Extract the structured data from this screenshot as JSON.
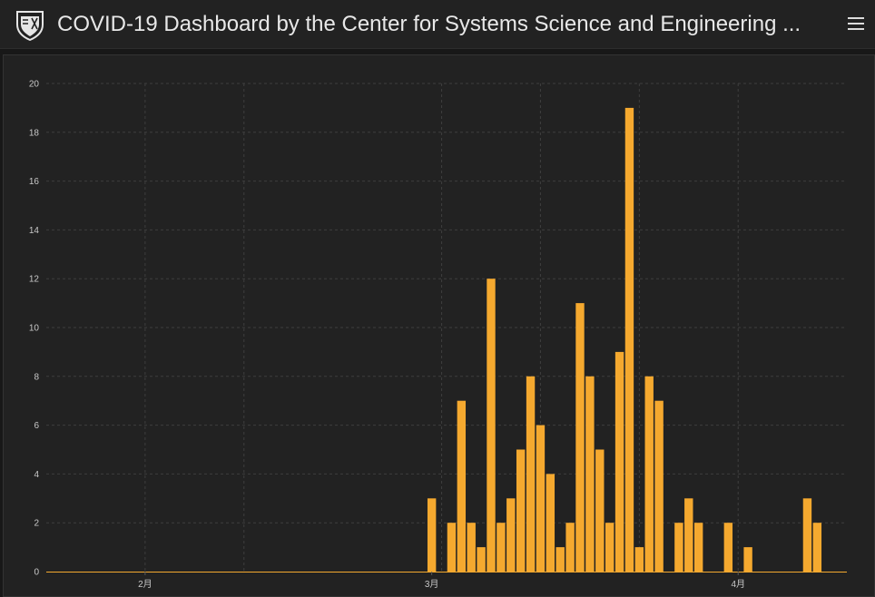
{
  "header": {
    "title": "COVID-19 Dashboard by the Center for Systems Science and Engineering ..."
  },
  "colors": {
    "bar": "#f5a92f",
    "grid": "#3e3e3e",
    "axis": "#5a5a5a",
    "background": "#222222"
  },
  "icons": {
    "logo": "university-shield-icon",
    "menu": "hamburger-menu-icon"
  },
  "chart_data": {
    "type": "bar",
    "title": "",
    "xlabel": "",
    "ylabel": "",
    "ylim": [
      0,
      20
    ],
    "yticks": [
      0,
      2,
      4,
      6,
      8,
      10,
      12,
      14,
      16,
      18,
      20
    ],
    "grid": true,
    "x_start": "2020-01-22",
    "x_end": "2020-04-12",
    "xticks": [
      {
        "date": "2020-02-01",
        "label": "2月"
      },
      {
        "date": "2020-03-01",
        "label": "3月"
      },
      {
        "date": "2020-04-01",
        "label": "4月"
      }
    ],
    "series": [
      {
        "x": [
          "2020-03-01",
          "2020-03-03",
          "2020-03-04",
          "2020-03-05",
          "2020-03-06",
          "2020-03-07",
          "2020-03-08",
          "2020-03-09",
          "2020-03-10",
          "2020-03-11",
          "2020-03-12",
          "2020-03-13",
          "2020-03-14",
          "2020-03-15",
          "2020-03-16",
          "2020-03-17",
          "2020-03-18",
          "2020-03-19",
          "2020-03-20",
          "2020-03-21",
          "2020-03-22",
          "2020-03-23",
          "2020-03-24",
          "2020-03-26",
          "2020-03-27",
          "2020-03-28",
          "2020-03-31",
          "2020-04-02",
          "2020-04-08",
          "2020-04-09"
        ],
        "values": [
          3,
          2,
          7,
          2,
          1,
          12,
          2,
          3,
          5,
          8,
          6,
          4,
          1,
          2,
          11,
          8,
          5,
          2,
          9,
          19,
          1,
          8,
          7,
          2,
          3,
          2,
          2,
          1,
          3,
          2
        ]
      }
    ]
  }
}
